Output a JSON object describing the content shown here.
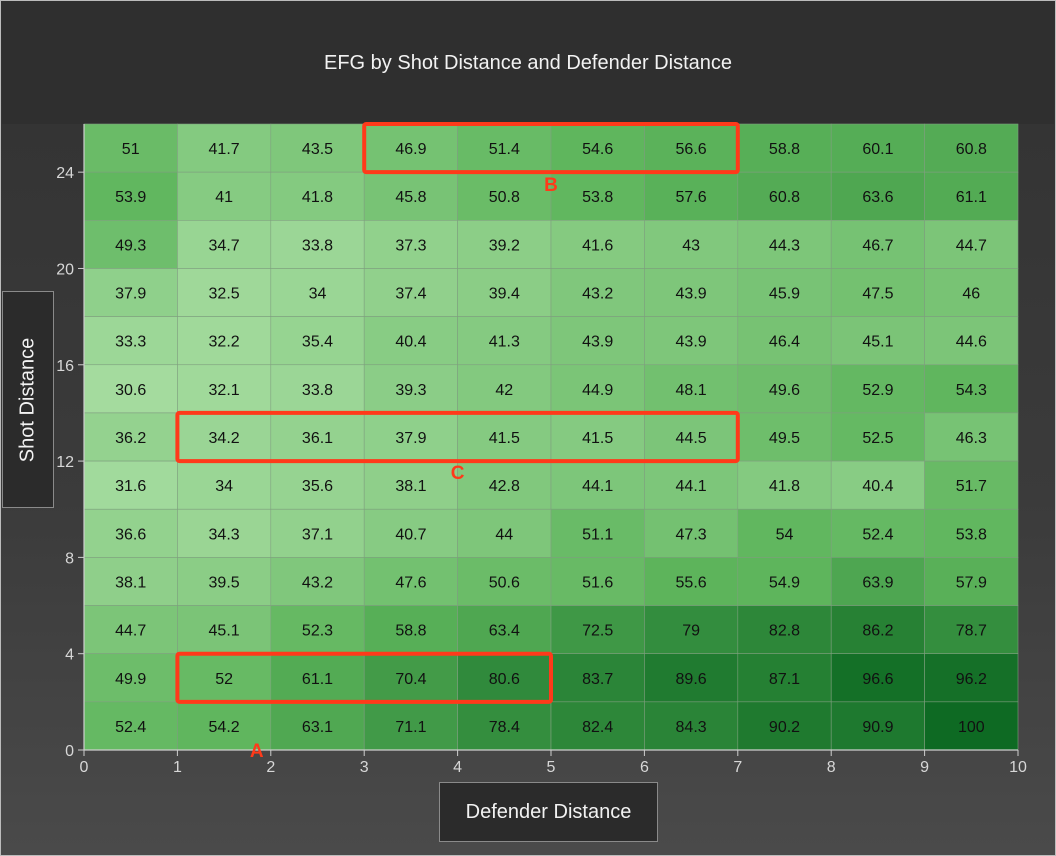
{
  "chart_data": {
    "type": "heatmap",
    "title": "EFG by Shot Distance and Defender Distance",
    "xlabel": "Defender Distance",
    "ylabel": "Shot Distance",
    "xlim": [
      0,
      10
    ],
    "ylim": [
      0,
      26
    ],
    "x_ticks": [
      "0",
      "1",
      "2",
      "3",
      "4",
      "5",
      "6",
      "7",
      "8",
      "9",
      "10"
    ],
    "y_ticks": [
      "0",
      "4",
      "8",
      "12",
      "16",
      "20",
      "24"
    ],
    "x_bins": [
      0,
      1,
      2,
      3,
      4,
      5,
      6,
      7,
      8,
      9,
      10
    ],
    "y_bins": [
      0,
      2,
      4,
      6,
      8,
      10,
      12,
      14,
      16,
      18,
      20,
      22,
      24,
      26
    ],
    "rows_top_to_bottom": [
      [
        "51",
        "41.7",
        "43.5",
        "46.9",
        "51.4",
        "54.6",
        "56.6",
        "58.8",
        "60.1",
        "60.8"
      ],
      [
        "53.9",
        "41",
        "41.8",
        "45.8",
        "50.8",
        "53.8",
        "57.6",
        "60.8",
        "63.6",
        "61.1"
      ],
      [
        "49.3",
        "34.7",
        "33.8",
        "37.3",
        "39.2",
        "41.6",
        "43",
        "44.3",
        "46.7",
        "44.7"
      ],
      [
        "37.9",
        "32.5",
        "34",
        "37.4",
        "39.4",
        "43.2",
        "43.9",
        "45.9",
        "47.5",
        "46"
      ],
      [
        "33.3",
        "32.2",
        "35.4",
        "40.4",
        "41.3",
        "43.9",
        "43.9",
        "46.4",
        "45.1",
        "44.6"
      ],
      [
        "30.6",
        "32.1",
        "33.8",
        "39.3",
        "42",
        "44.9",
        "48.1",
        "49.6",
        "52.9",
        "54.3"
      ],
      [
        "36.2",
        "34.2",
        "36.1",
        "37.9",
        "41.5",
        "41.5",
        "44.5",
        "49.5",
        "52.5",
        "46.3"
      ],
      [
        "31.6",
        "34",
        "35.6",
        "38.1",
        "42.8",
        "44.1",
        "44.1",
        "41.8",
        "40.4",
        "51.7"
      ],
      [
        "36.6",
        "34.3",
        "37.1",
        "40.7",
        "44",
        "51.1",
        "47.3",
        "54",
        "52.4",
        "53.8"
      ],
      [
        "38.1",
        "39.5",
        "43.2",
        "47.6",
        "50.6",
        "51.6",
        "55.6",
        "54.9",
        "63.9",
        "57.9"
      ],
      [
        "44.7",
        "45.1",
        "52.3",
        "58.8",
        "63.4",
        "72.5",
        "79",
        "82.8",
        "86.2",
        "78.7"
      ],
      [
        "49.9",
        "52",
        "61.1",
        "70.4",
        "80.6",
        "83.7",
        "89.6",
        "87.1",
        "96.6",
        "96.2"
      ],
      [
        "52.4",
        "54.2",
        "63.1",
        "71.1",
        "78.4",
        "82.4",
        "84.3",
        "90.2",
        "90.9",
        "100"
      ]
    ],
    "annotations": [
      {
        "label": "A",
        "x_range": [
          1,
          5
        ],
        "y_range": [
          2,
          4
        ]
      },
      {
        "label": "B",
        "x_range": [
          3,
          7
        ],
        "y_range": [
          24,
          26
        ]
      },
      {
        "label": "C",
        "x_range": [
          1,
          7
        ],
        "y_range": [
          12,
          14
        ]
      }
    ],
    "annotation_color": "#ff3a1a",
    "color_scale": {
      "low": "#a6dca0",
      "mid": "#5eb55c",
      "high": "#0e6a23"
    }
  }
}
